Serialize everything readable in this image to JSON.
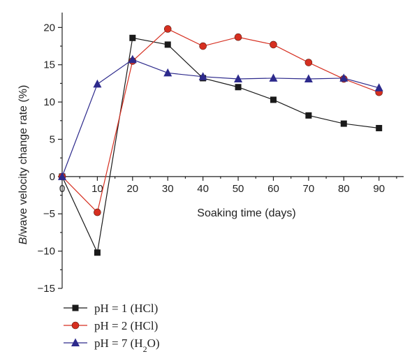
{
  "chart_data": {
    "type": "line",
    "xlabel": "Soaking time (days)",
    "ylabel_italic": "B",
    "ylabel_rest": "/wave velocity change rate (%)",
    "x": [
      0,
      10,
      20,
      30,
      40,
      50,
      60,
      70,
      80,
      90
    ],
    "xlim": [
      0,
      97
    ],
    "ylim": [
      -15,
      22
    ],
    "x_ticks": [
      0,
      10,
      20,
      30,
      40,
      50,
      60,
      70,
      80,
      90
    ],
    "x_tick_labels": [
      "0",
      "10",
      "20",
      "30",
      "40",
      "50",
      "60",
      "70",
      "80",
      "90"
    ],
    "y_ticks": [
      -15,
      -10,
      -5,
      0,
      5,
      10,
      15,
      20
    ],
    "y_tick_labels": [
      "−15",
      "−10",
      "−5",
      "0",
      "5",
      "10",
      "15",
      "20"
    ],
    "grid": false,
    "legend_position": "bottom-left",
    "series": [
      {
        "name": "pH = 1 (HCl)",
        "marker": "square",
        "line_color": "#1a1a1a",
        "marker_color": "#1a1a1a",
        "values": [
          0,
          -10.2,
          18.6,
          17.7,
          13.2,
          12.0,
          10.3,
          8.2,
          7.1,
          6.5
        ]
      },
      {
        "name": "pH = 2 (HCl)",
        "marker": "circle",
        "line_color": "#d62f20",
        "marker_color": "#d62f20",
        "values": [
          0,
          -4.8,
          15.5,
          19.8,
          17.5,
          18.7,
          17.7,
          15.3,
          13.1,
          11.3
        ]
      },
      {
        "name_main": "pH = 7 (H",
        "name_sub": "2",
        "name_end": "O)",
        "marker": "triangle",
        "line_color": "#2d2a8c",
        "marker_color": "#2d2a8c",
        "values": [
          0,
          12.4,
          15.7,
          13.9,
          13.4,
          13.1,
          13.2,
          13.1,
          13.2,
          11.9
        ]
      }
    ]
  }
}
